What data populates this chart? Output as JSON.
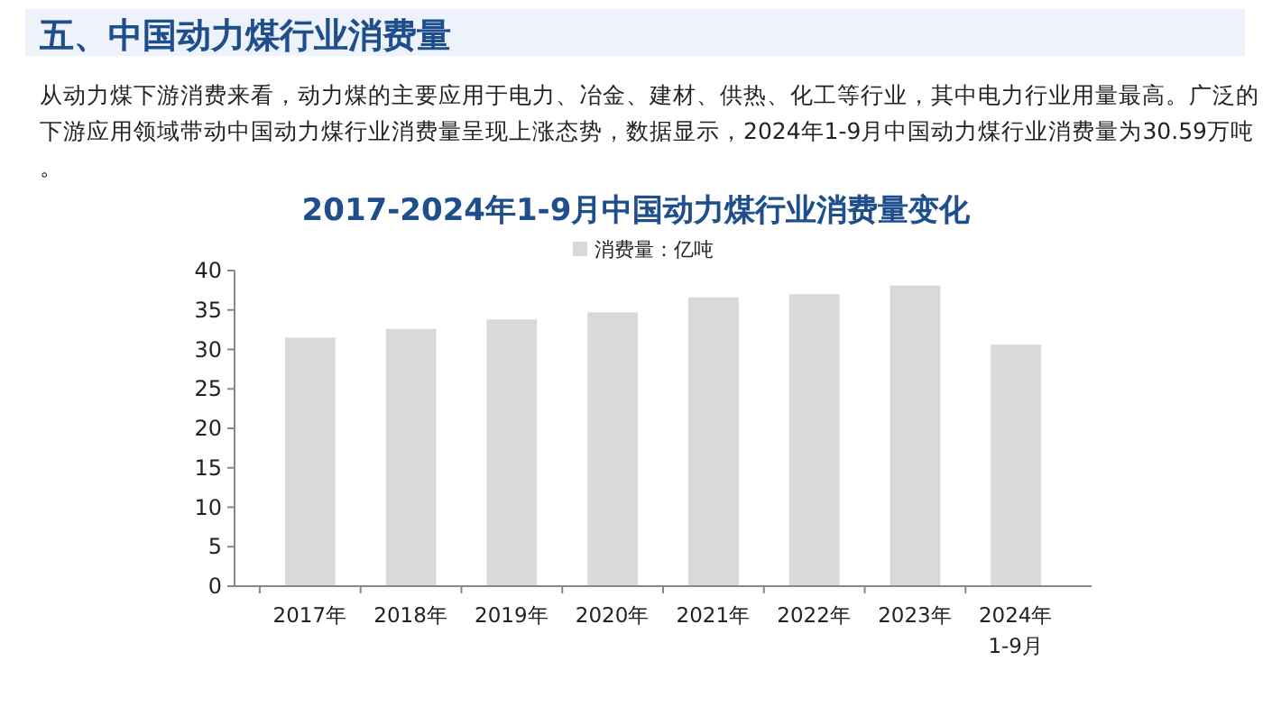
{
  "chart_data": {
    "type": "bar",
    "title": "五、中国动力煤行业消费量",
    "subtitle": "2017-2024年1-9月中国动力煤行业消费量变化",
    "annotations": [
      "从动力煤下游消费来看，动力煤的主要应用于电力、冶金、建材、供热、化工等行业，其中电力行业用量最高。广泛的下游应用领域带动中国动力煤行业消费量呈现上涨态势，数据显示，2024年1-9月中国动力煤行业消费量为30.59万吨。"
    ],
    "categories": [
      "2017年",
      "2018年",
      "2019年",
      "2020年",
      "2021年",
      "2022年",
      "2023年",
      "2024年\n1-9月"
    ],
    "series": [
      {
        "name": "消费量：亿吨",
        "color": "#d9d9d9",
        "values": [
          31.5,
          32.6,
          33.8,
          34.7,
          36.6,
          37.0,
          38.1,
          30.6
        ]
      }
    ],
    "ylim": [
      0,
      40
    ],
    "yticks": [
      0,
      5,
      10,
      15,
      20,
      25,
      30,
      35,
      40
    ],
    "grid": false,
    "legend": "top"
  }
}
